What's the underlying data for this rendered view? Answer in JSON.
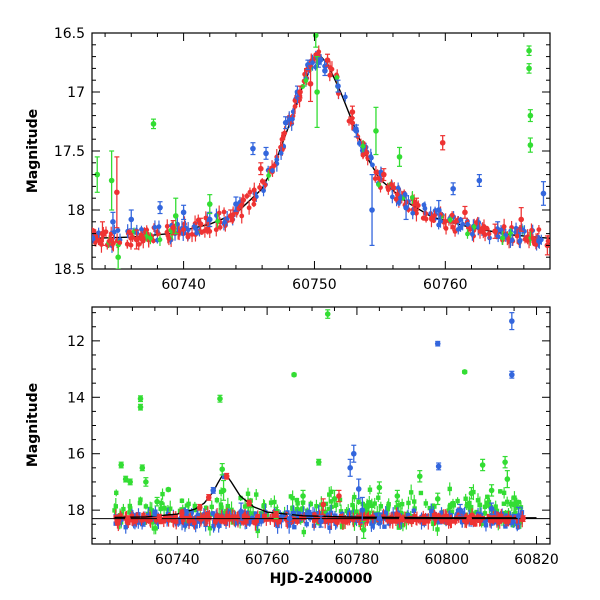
{
  "chart_data": [
    {
      "type": "scatter",
      "title": "",
      "xlabel": "",
      "ylabel": "Magnitude",
      "xlim": [
        60733,
        60768
      ],
      "ylim": [
        18.5,
        16.5
      ],
      "y_inverted": true,
      "xticks": [
        "60740",
        "60750",
        "60760"
      ],
      "yticks": [
        "16.5",
        "17",
        "17.5",
        "18",
        "18.5"
      ],
      "model": {
        "color": "#000000",
        "x": [
          60733,
          60736,
          60739,
          60742,
          60744,
          60746,
          60747,
          60748,
          60749,
          60749.5,
          60750,
          60750.5,
          60751,
          60752,
          60753,
          60754,
          60755,
          60757,
          60759,
          60762,
          60765,
          60768
        ],
        "y": [
          18.24,
          18.23,
          18.2,
          18.12,
          18.03,
          17.82,
          17.6,
          17.3,
          16.98,
          16.85,
          16.73,
          16.7,
          16.76,
          17.0,
          17.28,
          17.55,
          17.74,
          17.93,
          18.06,
          18.15,
          18.21,
          18.24
        ]
      },
      "series": [
        {
          "color": "#3366dd",
          "points": [
            {
              "x": 60734.6,
              "y": 18.1,
              "e": 0.08
            },
            {
              "x": 60736.0,
              "y": 18.08,
              "e": 0.08
            },
            {
              "x": 60738.2,
              "y": 17.98,
              "e": 0.05
            },
            {
              "x": 60740.0,
              "y": 18.02,
              "e": 0.06
            },
            {
              "x": 60742.0,
              "y": 18.08,
              "e": 0.06
            },
            {
              "x": 60744.0,
              "y": 17.95,
              "e": 0.06
            },
            {
              "x": 60745.3,
              "y": 17.48,
              "e": 0.05
            },
            {
              "x": 60746.3,
              "y": 17.52,
              "e": 0.05
            },
            {
              "x": 60747.8,
              "y": 17.26,
              "e": 0.05
            },
            {
              "x": 60748.7,
              "y": 17.0,
              "e": 0.05
            },
            {
              "x": 60749.5,
              "y": 16.77,
              "e": 0.04
            },
            {
              "x": 60750.3,
              "y": 16.75,
              "e": 0.04
            },
            {
              "x": 60750.8,
              "y": 16.82,
              "e": 0.04
            },
            {
              "x": 60751.8,
              "y": 16.95,
              "e": 0.05
            },
            {
              "x": 60753.2,
              "y": 17.33,
              "e": 0.05
            },
            {
              "x": 60754.4,
              "y": 18.0,
              "e": 0.3
            },
            {
              "x": 60757.0,
              "y": 17.98,
              "e": 0.1
            },
            {
              "x": 60759.5,
              "y": 18.0,
              "e": 0.08
            },
            {
              "x": 60760.6,
              "y": 17.82,
              "e": 0.05
            },
            {
              "x": 60762.6,
              "y": 17.75,
              "e": 0.05
            },
            {
              "x": 60764.0,
              "y": 18.17,
              "e": 0.07
            },
            {
              "x": 60767.5,
              "y": 17.86,
              "e": 0.1
            }
          ]
        },
        {
          "color": "#33dd33",
          "points": [
            {
              "x": 60733.4,
              "y": 17.7,
              "e": 0.15
            },
            {
              "x": 60734.5,
              "y": 17.75,
              "e": 0.25
            },
            {
              "x": 60735.0,
              "y": 18.4,
              "e": 0.1
            },
            {
              "x": 60737.7,
              "y": 17.27,
              "e": 0.04
            },
            {
              "x": 60739.4,
              "y": 18.05,
              "e": 0.15
            },
            {
              "x": 60742.0,
              "y": 17.95,
              "e": 0.08
            },
            {
              "x": 60750.1,
              "y": 16.52,
              "e": 0.1
            },
            {
              "x": 60750.2,
              "y": 17.0,
              "e": 0.3
            },
            {
              "x": 60754.7,
              "y": 17.33,
              "e": 0.2
            },
            {
              "x": 60756.5,
              "y": 17.55,
              "e": 0.08
            },
            {
              "x": 60766.4,
              "y": 16.65,
              "e": 0.04
            },
            {
              "x": 60766.4,
              "y": 16.8,
              "e": 0.04
            },
            {
              "x": 60766.5,
              "y": 17.2,
              "e": 0.05
            },
            {
              "x": 60766.5,
              "y": 17.45,
              "e": 0.06
            }
          ]
        },
        {
          "color": "#ee3333",
          "points": [
            {
              "x": 60733.8,
              "y": 18.2,
              "e": 0.1
            },
            {
              "x": 60734.9,
              "y": 17.85,
              "e": 0.3
            },
            {
              "x": 60736.4,
              "y": 18.25,
              "e": 0.08
            },
            {
              "x": 60739.2,
              "y": 18.15,
              "e": 0.06
            },
            {
              "x": 60741.3,
              "y": 18.12,
              "e": 0.05
            },
            {
              "x": 60743.6,
              "y": 18.05,
              "e": 0.05
            },
            {
              "x": 60745.9,
              "y": 17.65,
              "e": 0.05
            },
            {
              "x": 60748.9,
              "y": 17.0,
              "e": 0.05
            },
            {
              "x": 60749.7,
              "y": 16.93,
              "e": 0.15
            },
            {
              "x": 60751.0,
              "y": 16.73,
              "e": 0.05
            },
            {
              "x": 60752.9,
              "y": 17.17,
              "e": 0.05
            },
            {
              "x": 60755.3,
              "y": 17.7,
              "e": 0.05
            },
            {
              "x": 60757.8,
              "y": 17.95,
              "e": 0.05
            },
            {
              "x": 60759.8,
              "y": 17.43,
              "e": 0.06
            },
            {
              "x": 60761.5,
              "y": 18.02,
              "e": 0.05
            },
            {
              "x": 60763.8,
              "y": 18.18,
              "e": 0.06
            },
            {
              "x": 60765.8,
              "y": 18.08,
              "e": 0.1
            },
            {
              "x": 60767.8,
              "y": 18.3,
              "e": 0.08
            }
          ]
        }
      ]
    },
    {
      "type": "scatter",
      "title": "",
      "xlabel": "HJD-2400000",
      "ylabel": "Magnitude",
      "xlim": [
        60721,
        60823
      ],
      "ylim": [
        19.2,
        10.8
      ],
      "y_inverted": true,
      "xticks": [
        "60740",
        "60760",
        "60780",
        "60800",
        "60820"
      ],
      "yticks": [
        "12",
        "14",
        "16",
        "18"
      ],
      "reference_magnitude": 18.3,
      "model": {
        "color": "#000000",
        "x": [
          60726,
          60733,
          60740,
          60744,
          60746,
          60748,
          60749,
          60750,
          60751,
          60752,
          60754,
          60757,
          60760,
          60768,
          60780,
          60800,
          60815,
          60820
        ],
        "y": [
          18.26,
          18.24,
          18.14,
          17.96,
          17.75,
          17.35,
          17.05,
          16.78,
          16.78,
          17.0,
          17.5,
          17.88,
          18.07,
          18.2,
          18.25,
          18.27,
          18.27,
          18.27
        ]
      },
      "series": [
        {
          "color": "#3366dd",
          "points": [
            {
              "x": 60735.0,
              "y": 18.1,
              "e": 0.1
            },
            {
              "x": 60742.0,
              "y": 18.08,
              "e": 0.1
            },
            {
              "x": 60748.0,
              "y": 17.3,
              "e": 0.1
            },
            {
              "x": 60750.5,
              "y": 16.8,
              "e": 0.08
            },
            {
              "x": 60754.2,
              "y": 18.05,
              "e": 0.3
            },
            {
              "x": 60765.0,
              "y": 18.3,
              "e": 0.15
            },
            {
              "x": 60772.0,
              "y": 18.4,
              "e": 0.2
            },
            {
              "x": 60778.5,
              "y": 16.5,
              "e": 0.3
            },
            {
              "x": 60779.3,
              "y": 16.0,
              "e": 0.3
            },
            {
              "x": 60780.4,
              "y": 17.25,
              "e": 0.35
            },
            {
              "x": 60781.2,
              "y": 18.0,
              "e": 0.45
            },
            {
              "x": 60785.0,
              "y": 18.3,
              "e": 0.2
            },
            {
              "x": 60798.0,
              "y": 12.1,
              "e": 0.08
            },
            {
              "x": 60798.2,
              "y": 16.45,
              "e": 0.12
            },
            {
              "x": 60803.0,
              "y": 18.0,
              "e": 0.2
            },
            {
              "x": 60810.0,
              "y": 17.95,
              "e": 0.2
            },
            {
              "x": 60814.5,
              "y": 11.3,
              "e": 0.3
            },
            {
              "x": 60814.5,
              "y": 13.2,
              "e": 0.12
            },
            {
              "x": 60816.0,
              "y": 18.2,
              "e": 0.3
            }
          ]
        },
        {
          "color": "#33dd33",
          "points": [
            {
              "x": 60727.5,
              "y": 16.4,
              "e": 0.1
            },
            {
              "x": 60728.5,
              "y": 16.9,
              "e": 0.1
            },
            {
              "x": 60729.5,
              "y": 17.0,
              "e": 0.1
            },
            {
              "x": 60731.8,
              "y": 14.05,
              "e": 0.1
            },
            {
              "x": 60731.8,
              "y": 14.35,
              "e": 0.1
            },
            {
              "x": 60732.2,
              "y": 16.5,
              "e": 0.1
            },
            {
              "x": 60733.0,
              "y": 17.0,
              "e": 0.15
            },
            {
              "x": 60735.5,
              "y": 17.7,
              "e": 0.15
            },
            {
              "x": 60738.0,
              "y": 17.27,
              "e": 0.05
            },
            {
              "x": 60749.5,
              "y": 14.05,
              "e": 0.12
            },
            {
              "x": 60750.0,
              "y": 16.55,
              "e": 0.2
            },
            {
              "x": 60750.3,
              "y": 17.3,
              "e": 0.35
            },
            {
              "x": 60762.0,
              "y": 18.1,
              "e": 0.2
            },
            {
              "x": 60766.0,
              "y": 13.2,
              "e": 0.05
            },
            {
              "x": 60768.0,
              "y": 17.5,
              "e": 0.2
            },
            {
              "x": 60771.5,
              "y": 16.3,
              "e": 0.1
            },
            {
              "x": 60773.5,
              "y": 11.05,
              "e": 0.15
            },
            {
              "x": 60775.0,
              "y": 17.6,
              "e": 0.3
            },
            {
              "x": 60781.5,
              "y": 18.7,
              "e": 0.3
            },
            {
              "x": 60785.0,
              "y": 17.2,
              "e": 0.2
            },
            {
              "x": 60789.0,
              "y": 17.5,
              "e": 0.2
            },
            {
              "x": 60794.0,
              "y": 16.8,
              "e": 0.2
            },
            {
              "x": 60798.0,
              "y": 17.6,
              "e": 0.2
            },
            {
              "x": 60804.0,
              "y": 13.1,
              "e": 0.05
            },
            {
              "x": 60805.5,
              "y": 17.4,
              "e": 0.2
            },
            {
              "x": 60808.0,
              "y": 16.4,
              "e": 0.2
            },
            {
              "x": 60810.0,
              "y": 17.3,
              "e": 0.2
            },
            {
              "x": 60813.0,
              "y": 16.3,
              "e": 0.2
            },
            {
              "x": 60813.5,
              "y": 16.9,
              "e": 0.3
            },
            {
              "x": 60815.0,
              "y": 17.8,
              "e": 0.3
            }
          ]
        },
        {
          "color": "#ee3333",
          "points": [
            {
              "x": 60729.0,
              "y": 18.3,
              "e": 0.1
            },
            {
              "x": 60736.0,
              "y": 18.25,
              "e": 0.1
            },
            {
              "x": 60741.0,
              "y": 18.1,
              "e": 0.1
            },
            {
              "x": 60745.0,
              "y": 17.9,
              "e": 0.1
            },
            {
              "x": 60747.0,
              "y": 17.55,
              "e": 0.1
            },
            {
              "x": 60751.0,
              "y": 16.8,
              "e": 0.1
            },
            {
              "x": 60756.0,
              "y": 17.75,
              "e": 0.1
            },
            {
              "x": 60762.0,
              "y": 18.15,
              "e": 0.1
            },
            {
              "x": 60772.5,
              "y": 17.8,
              "e": 0.2
            },
            {
              "x": 60776.0,
              "y": 17.5,
              "e": 0.2
            },
            {
              "x": 60790.0,
              "y": 18.3,
              "e": 0.1
            },
            {
              "x": 60805.0,
              "y": 18.3,
              "e": 0.1
            },
            {
              "x": 60817.0,
              "y": 18.3,
              "e": 0.1
            }
          ]
        }
      ],
      "dense_coverage": [
        {
          "color": "#33dd33",
          "x_range": [
            60726,
            60817
          ],
          "center": 18.0,
          "spread": 0.6
        },
        {
          "color": "#3366dd",
          "x_range": [
            60726,
            60817
          ],
          "center": 18.3,
          "spread": 0.25
        },
        {
          "color": "#ee3333",
          "x_range": [
            60726,
            60817
          ],
          "center": 18.32,
          "spread": 0.15
        }
      ]
    }
  ]
}
